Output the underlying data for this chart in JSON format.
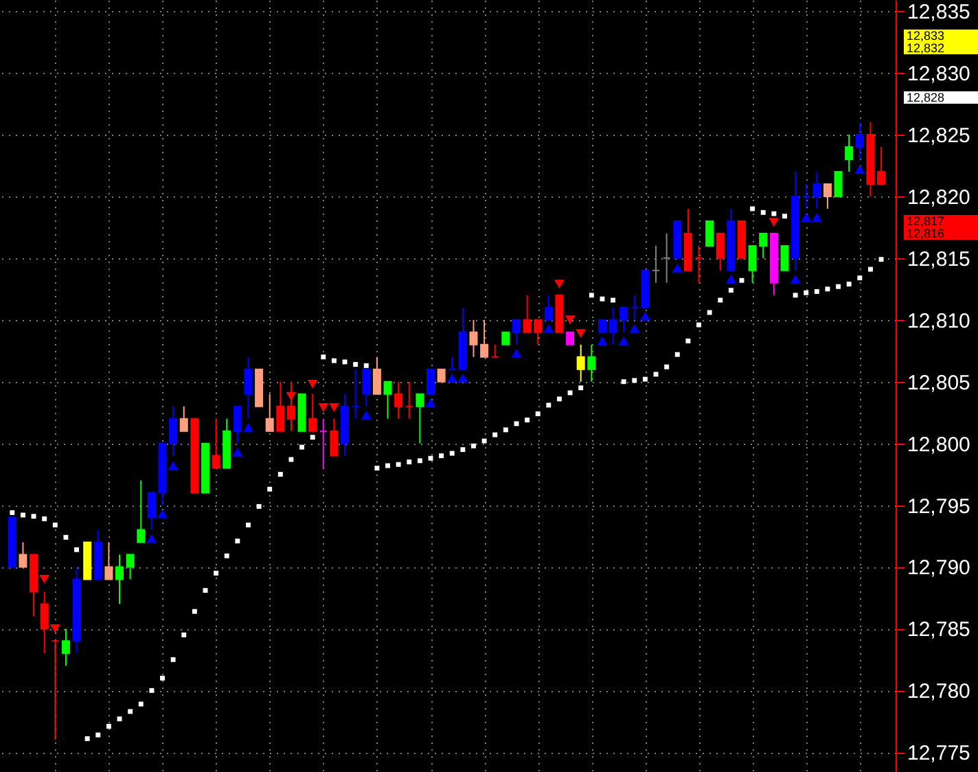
{
  "chart_data": {
    "type": "candlestick",
    "categories": [
      null,
      null,
      null,
      null,
      null,
      null,
      null,
      null,
      null,
      null,
      null,
      null,
      null,
      null,
      null,
      null,
      null,
      null,
      null,
      null,
      null,
      null,
      null,
      null,
      null,
      null,
      null,
      null,
      null,
      null,
      null,
      null,
      null,
      null,
      null,
      null,
      null,
      null,
      null,
      null,
      null,
      null,
      null,
      null,
      null,
      null,
      null,
      null,
      null,
      null,
      null,
      null,
      null,
      null,
      null,
      null,
      null,
      null,
      null,
      null,
      null,
      null,
      null,
      null,
      null,
      null,
      null,
      null,
      null,
      null,
      null,
      null,
      null,
      null,
      null,
      null,
      null,
      null,
      null,
      null,
      null,
      null
    ],
    "ohlc": [
      [
        12790,
        12794,
        12790,
        12794
      ],
      [
        12791,
        12792,
        12790,
        12790
      ],
      [
        12791,
        12791,
        12786,
        12788
      ],
      [
        12787,
        12788,
        12783,
        12785
      ],
      [
        12784,
        12784,
        12776,
        12784
      ],
      [
        12783,
        12785,
        12782,
        12784
      ],
      [
        12784,
        12790,
        12783,
        12789
      ],
      [
        12789,
        12792,
        12789,
        12792
      ],
      [
        12789,
        12793,
        12789,
        12792
      ],
      [
        12790,
        12792,
        12789,
        12789
      ],
      [
        12789,
        12791,
        12787,
        12790
      ],
      [
        12790,
        12791,
        12789,
        12791
      ],
      [
        12792,
        12797,
        12792,
        12793
      ],
      [
        12794,
        12796,
        12793,
        12796
      ],
      [
        12796,
        12800,
        12795,
        12800
      ],
      [
        12800,
        12803,
        12799,
        12802
      ],
      [
        12802,
        12803,
        12801,
        12801
      ],
      [
        12802,
        12802,
        12796,
        12796
      ],
      [
        12796,
        12800,
        12796,
        12800
      ],
      [
        12799,
        12802,
        12798,
        12798
      ],
      [
        12798,
        12802,
        12798,
        12801
      ],
      [
        12801,
        12803,
        12800,
        12803
      ],
      [
        12804,
        12807,
        12802,
        12806
      ],
      [
        12806,
        12806,
        12803,
        12803
      ],
      [
        12802,
        12804,
        12801,
        12801
      ],
      [
        12803,
        12805,
        12801,
        12801
      ],
      [
        12803,
        12805,
        12801,
        12802
      ],
      [
        12801,
        12804,
        12801,
        12804
      ],
      [
        12802,
        12804,
        12801,
        12801
      ],
      [
        12801,
        12802,
        12798,
        12801
      ],
      [
        12801,
        12802,
        12799,
        12799
      ],
      [
        12800,
        12804,
        12799,
        12803
      ],
      [
        12803,
        12806,
        12802,
        12803
      ],
      [
        12804,
        12806,
        12803,
        12806
      ],
      [
        12806,
        12807,
        12804,
        12804
      ],
      [
        12804,
        12805,
        12802,
        12805
      ],
      [
        12804,
        12805,
        12802,
        12803
      ],
      [
        12803,
        12805,
        12802,
        12803
      ],
      [
        12803,
        12804,
        12800,
        12804
      ],
      [
        12804,
        12806,
        12804,
        12806
      ],
      [
        12806,
        12806,
        12805,
        12805
      ],
      [
        12806,
        12807,
        12806,
        12806
      ],
      [
        12806,
        12811,
        12806,
        12809
      ],
      [
        12809,
        12810,
        12807,
        12808
      ],
      [
        12808,
        12810,
        12807,
        12807
      ],
      [
        12807,
        12808,
        12807,
        12807
      ],
      [
        12808,
        12809,
        12808,
        12809
      ],
      [
        12809,
        12810,
        12808,
        12810
      ],
      [
        12810,
        12812,
        12809,
        12809
      ],
      [
        12810,
        12810,
        12808,
        12809
      ],
      [
        12810,
        12812,
        12810,
        12811
      ],
      [
        12812,
        12812,
        12809,
        12809
      ],
      [
        12809,
        12809,
        12808,
        12808
      ],
      [
        12806,
        12808,
        12805,
        12807
      ],
      [
        12806,
        12808,
        12805,
        12807
      ],
      [
        12809,
        12810,
        12809,
        12810
      ],
      [
        12809,
        12811,
        12808,
        12810
      ],
      [
        12810,
        12811,
        12809,
        12811
      ],
      [
        12811,
        12812,
        12810,
        12811
      ],
      [
        12811,
        12814,
        12811,
        12814
      ],
      [
        12814,
        12816,
        12813,
        12814
      ],
      [
        12815,
        12817,
        12813,
        12815
      ],
      [
        12815,
        12818,
        12815,
        12818
      ],
      [
        12817,
        12819,
        12814,
        12814
      ],
      [
        12815,
        12816,
        12813,
        12815
      ],
      [
        12816,
        12818,
        12816,
        12818
      ],
      [
        12817,
        12817,
        12814,
        12815
      ],
      [
        12814,
        12819,
        12814,
        12818
      ],
      [
        12818,
        12818,
        12815,
        12815
      ],
      [
        12814,
        12816,
        12813,
        12816
      ],
      [
        12816,
        12817,
        12815,
        12817
      ],
      [
        12817,
        12817,
        12812,
        12813
      ],
      [
        12814,
        12816,
        12814,
        12816
      ],
      [
        12815,
        12822,
        12814,
        12820
      ],
      [
        12820,
        12821,
        12819,
        12820
      ],
      [
        12820,
        12822,
        12819,
        12821
      ],
      [
        12821,
        12821,
        12819,
        12820
      ],
      [
        12820,
        12822,
        12820,
        12822
      ],
      [
        12823,
        12825,
        12822,
        12824
      ],
      [
        12824,
        12826,
        12823,
        12825
      ],
      [
        12825,
        12826,
        12820,
        12821
      ],
      [
        12822,
        12824,
        12821,
        12821
      ]
    ],
    "colors": [
      "#0000ff",
      "#ff9f7f",
      "#ff0000",
      "#ff0000",
      "#ff0000",
      "#00ff00",
      "#0000ff",
      "#ffff00",
      "#0000ff",
      "#ff9f7f",
      "#00ff00",
      "#00ff00",
      "#00ff00",
      "#0000ff",
      "#0000ff",
      "#0000ff",
      "#ff9f7f",
      "#ff0000",
      "#00ff00",
      "#ff0000",
      "#00ff00",
      "#0000ff",
      "#0000ff",
      "#ff9f7f",
      "#ff9f7f",
      "#ff0000",
      "#ff0000",
      "#00ff00",
      "#ff0000",
      "#ff00ff",
      "#ff0000",
      "#0000ff",
      "#0000ff",
      "#0000ff",
      "#ff9f7f",
      "#00ff00",
      "#ff0000",
      "#ff0000",
      "#00ff00",
      "#0000ff",
      "#ff9f7f",
      "#0000ff",
      "#0000ff",
      "#ff9f7f",
      "#ff9f7f",
      "#ff0000",
      "#00ff00",
      "#0000ff",
      "#ff0000",
      "#ff0000",
      "#0000ff",
      "#ff0000",
      "#ff00ff",
      "#ffff00",
      "#00ff00",
      "#0000ff",
      "#0000ff",
      "#0000ff",
      "#0000ff",
      "#0000ff",
      "#808080",
      "#808080",
      "#0000ff",
      "#ff0000",
      "#ff0000",
      "#00ff00",
      "#ff0000",
      "#0000ff",
      "#ff0000",
      "#00ff00",
      "#00ff00",
      "#ff00ff",
      "#00ff00",
      "#0000ff",
      "#0000ff",
      "#0000ff",
      "#ff9f7f",
      "#00ff00",
      "#00ff00",
      "#0000ff",
      "#ff0000",
      "#ff0000"
    ],
    "series": [
      {
        "type": "scatter",
        "color": "#ffffff",
        "marker": "square",
        "values": [
          12794.4,
          12794.2,
          12794.1,
          12793.9,
          12793.4,
          12792.4,
          12791.4,
          12776.1,
          12776.4,
          12777.1,
          12777.7,
          12778.3,
          12778.9,
          12780.0,
          12781.0,
          12782.5,
          12784.5,
          12786.4,
          12788.1,
          12789.5,
          12790.9,
          12792.1,
          12793.4,
          12794.9,
          12796.3,
          12797.5,
          12798.7,
          12799.7,
          12800.5,
          12807.0,
          12806.7,
          12806.6,
          12806.4,
          12806.3,
          12798.0,
          12798.2,
          12798.3,
          12798.5,
          12798.6,
          12798.8,
          12799.0,
          12799.2,
          12799.5,
          12799.8,
          12800.2,
          12800.7,
          12801.1,
          12801.6,
          12801.9,
          12802.4,
          12803.1,
          12803.6,
          12804.1,
          12804.5,
          12812.0,
          12811.7,
          12811.6,
          12805.0,
          12805.1,
          12805.2,
          12805.6,
          12806.2,
          12807.2,
          12808.3,
          12809.6,
          12810.6,
          12811.6,
          12812.4,
          12813.2,
          12819.0,
          12818.7,
          12818.6,
          12818.4,
          12812.0,
          12812.2,
          12812.3,
          12812.5,
          12812.7,
          12812.9,
          12813.4,
          12814.1,
          12814.9
        ]
      },
      {
        "type": "scatter",
        "color": "#0000ff",
        "marker": "triangle",
        "values": [
          null,
          null,
          null,
          null,
          null,
          null,
          null,
          null,
          null,
          null,
          null,
          null,
          null,
          12792.3,
          12794.3,
          12798.2,
          null,
          null,
          null,
          null,
          null,
          12799.3,
          12801.3,
          null,
          null,
          null,
          null,
          null,
          null,
          null,
          null,
          null,
          null,
          12802.3,
          null,
          null,
          null,
          null,
          null,
          12803.3,
          null,
          12805.3,
          12805.3,
          null,
          null,
          null,
          null,
          12807.3,
          null,
          null,
          12809.3,
          null,
          null,
          null,
          null,
          12808.3,
          null,
          12808.3,
          12809.3,
          12810.3,
          null,
          null,
          12814.2,
          null,
          null,
          null,
          null,
          12813.3,
          null,
          null,
          null,
          null,
          null,
          12813.3,
          12818.3,
          12818.3,
          null,
          null,
          null,
          12822.2,
          null,
          null
        ]
      },
      {
        "type": "scatter",
        "color": "#ff0000",
        "marker": "triangle-down",
        "values": [
          null,
          null,
          null,
          12789.0,
          12785.0,
          null,
          null,
          null,
          null,
          null,
          null,
          null,
          null,
          null,
          null,
          null,
          null,
          null,
          null,
          null,
          null,
          null,
          null,
          null,
          null,
          null,
          12803.8,
          null,
          12804.8,
          12802.9,
          12802.9,
          null,
          null,
          null,
          null,
          null,
          null,
          null,
          null,
          null,
          null,
          null,
          null,
          null,
          null,
          null,
          null,
          null,
          null,
          null,
          null,
          12812.9,
          12810.0,
          12808.9,
          null,
          null,
          null,
          null,
          null,
          null,
          null,
          null,
          null,
          null,
          null,
          null,
          null,
          null,
          null,
          null,
          null,
          12817.9,
          null,
          null,
          null,
          null,
          null,
          null,
          null,
          null,
          null,
          null
        ]
      }
    ],
    "ylim": [
      12773.4,
      12835.9
    ],
    "yticks": [
      {
        "value": 12775,
        "label": "12,775"
      },
      {
        "value": 12780,
        "label": "12,780"
      },
      {
        "value": 12785,
        "label": "12,785"
      },
      {
        "value": 12790,
        "label": "12,790"
      },
      {
        "value": 12795,
        "label": "12,795"
      },
      {
        "value": 12800,
        "label": "12,800"
      },
      {
        "value": 12805,
        "label": "12,805"
      },
      {
        "value": 12810,
        "label": "12,810"
      },
      {
        "value": 12815,
        "label": "12,815"
      },
      {
        "value": 12820,
        "label": "12,820"
      },
      {
        "value": 12825,
        "label": "12,825"
      },
      {
        "value": 12830,
        "label": "12,830"
      },
      {
        "value": 12835,
        "label": "12,835"
      }
    ],
    "annotations": [
      "12,833",
      "12,832",
      "12,828",
      "12,817",
      "12,816"
    ],
    "grid": true,
    "tick_labels": "y"
  }
}
